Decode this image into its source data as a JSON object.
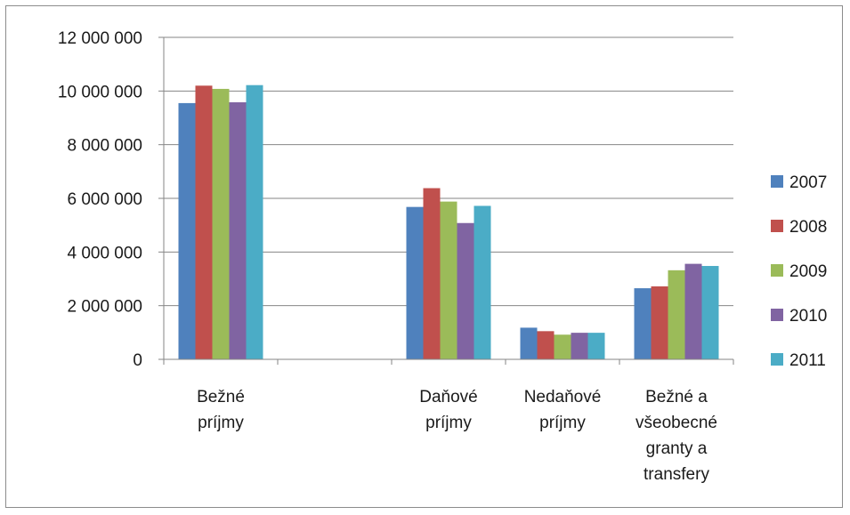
{
  "chart_data": {
    "type": "bar",
    "categories": [
      [
        "Bežné",
        "príjmy"
      ],
      [],
      [
        "Daňové",
        "príjmy"
      ],
      [
        "Nedaňové",
        "príjmy"
      ],
      [
        "Bežné a",
        "všeobecné",
        "granty a",
        "transfery"
      ]
    ],
    "series": [
      {
        "name": "2007",
        "color": "#4f81bd",
        "values": [
          9550000,
          0,
          5680000,
          1180000,
          2650000
        ]
      },
      {
        "name": "2008",
        "color": "#c0504d",
        "values": [
          10200000,
          0,
          6380000,
          1050000,
          2720000
        ]
      },
      {
        "name": "2009",
        "color": "#9bbb59",
        "values": [
          10080000,
          0,
          5880000,
          920000,
          3320000
        ]
      },
      {
        "name": "2010",
        "color": "#8064a2",
        "values": [
          9580000,
          0,
          5080000,
          990000,
          3560000
        ]
      },
      {
        "name": "2011",
        "color": "#4bacc6",
        "values": [
          10220000,
          0,
          5720000,
          990000,
          3480000
        ]
      }
    ],
    "yticks": [
      "0",
      "2 000 000",
      "4 000 000",
      "6 000 000",
      "8 000 000",
      "10 000 000",
      "12 000 000"
    ],
    "ylim": [
      0,
      12000000
    ],
    "grid": true,
    "legend": "right",
    "title": "",
    "xlabel": "",
    "ylabel": ""
  }
}
